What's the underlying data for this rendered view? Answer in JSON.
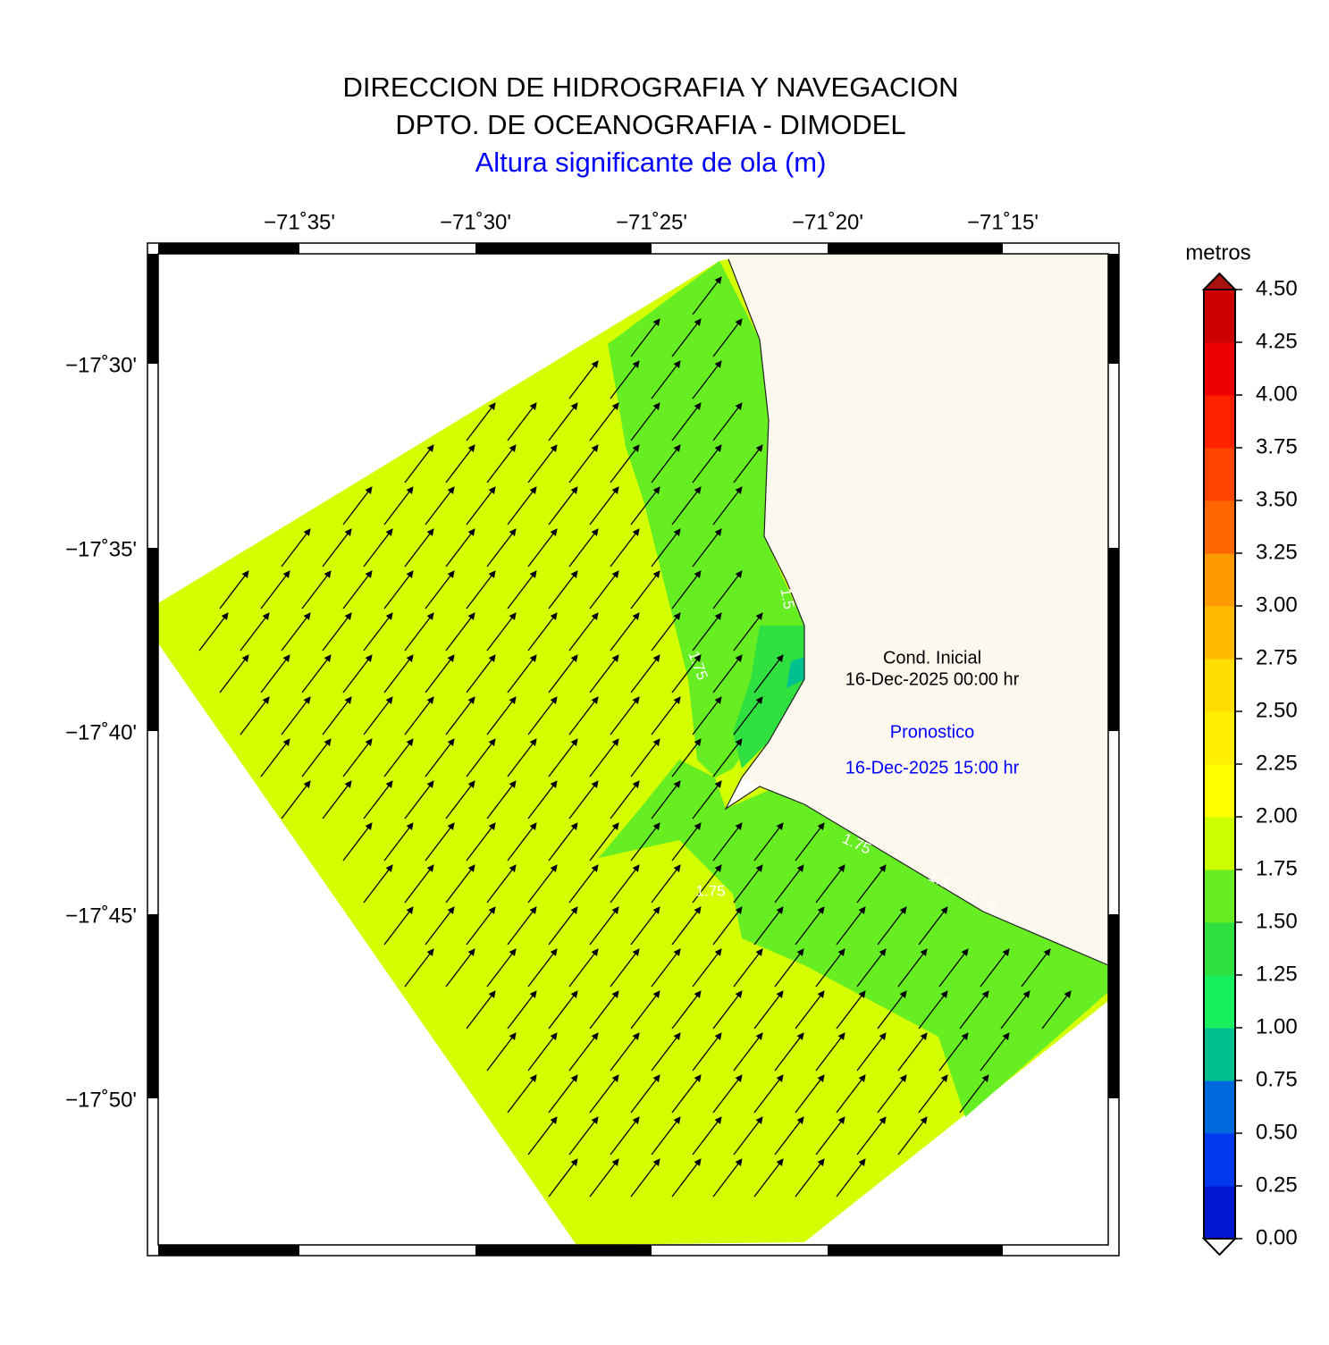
{
  "title": [
    "DIRECCION DE HIDROGRAFIA Y NAVEGACION",
    "DPTO. DE OCEANOGRAFIA - DIMODEL"
  ],
  "subtitle": "Altura significante de ola (m)",
  "lon_ticks": [
    "−71˚35'",
    "−71˚30'",
    "−71˚25'",
    "−71˚20'",
    "−71˚15'"
  ],
  "lat_ticks": [
    "−17˚30'",
    "−17˚35'",
    "−17˚40'",
    "−17˚45'",
    "−17˚50'"
  ],
  "colorbar": {
    "title": "metros",
    "labels": [
      "0.00",
      "0.25",
      "0.50",
      "0.75",
      "1.00",
      "1.25",
      "1.50",
      "1.75",
      "2.00",
      "2.25",
      "2.50",
      "2.75",
      "3.00",
      "3.25",
      "3.50",
      "3.75",
      "4.00",
      "4.25",
      "4.50"
    ],
    "colors": [
      "#0019d0",
      "#0038ee",
      "#0068dd",
      "#00c090",
      "#18f060",
      "#30e040",
      "#66ee22",
      "#ccff00",
      "#ffff00",
      "#ffee00",
      "#ffdd00",
      "#ffbb00",
      "#ff9900",
      "#ff6600",
      "#ff4400",
      "#ff2200",
      "#ee0000",
      "#cc0000"
    ]
  },
  "annotations": {
    "cond_label": "Cond. Inicial",
    "cond_date": "16-Dec-2025 00:00 hr",
    "forecast_label": "Pronostico",
    "forecast_date": "16-Dec-2025 15:00 hr"
  },
  "contour_labels": [
    "1.75",
    "1.5",
    "1.75",
    "1.75",
    "1.5",
    "1.75"
  ]
}
